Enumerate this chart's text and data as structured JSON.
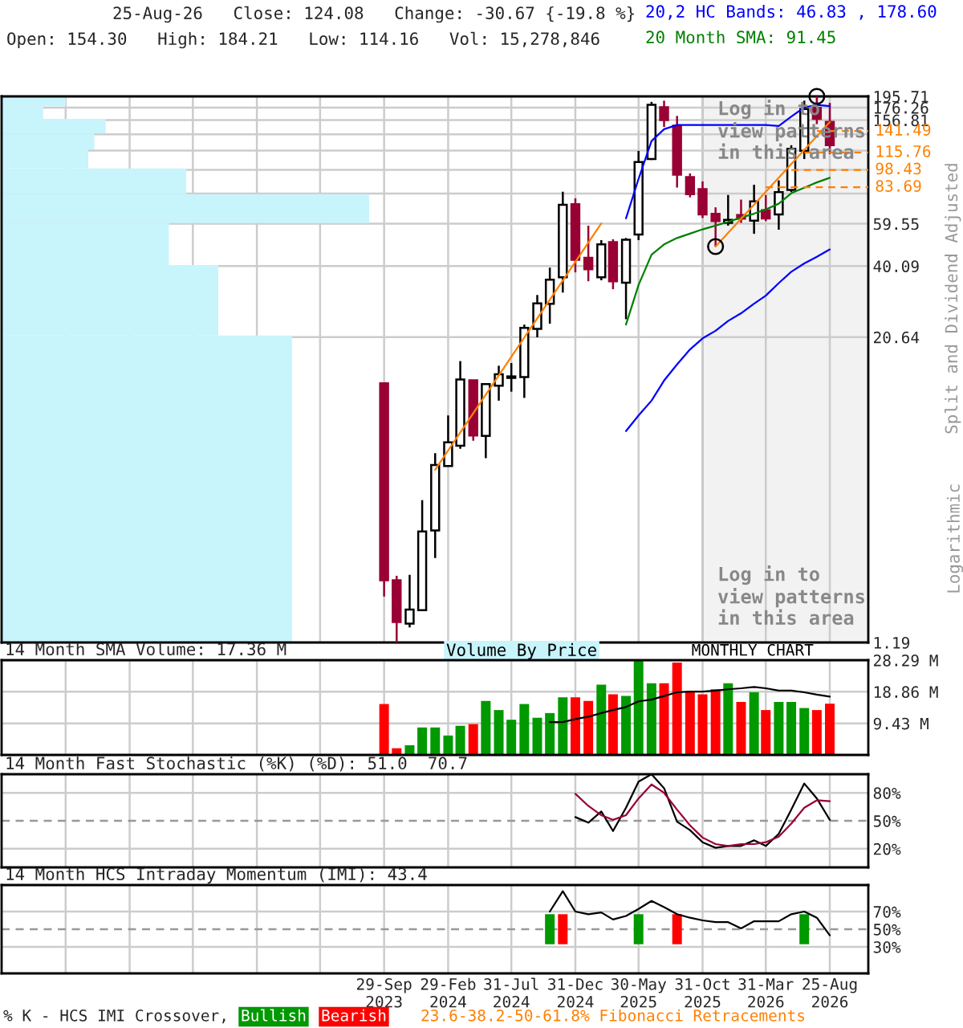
{
  "chart_data": [
    {
      "type": "candlestick",
      "title": "25-Aug-26   Close: 124.08   Change: -30.67 {-19.8 %}",
      "subtitle": "Open: 154.30   High: 184.21   Low: 114.16   Vol: 15,278,846",
      "x": [
        "2023-09",
        "2023-10",
        "2023-11",
        "2023-12",
        "2024-01",
        "2024-02",
        "2024-03",
        "2024-04",
        "2024-05",
        "2024-06",
        "2024-07",
        "2024-08",
        "2024-09",
        "2024-10",
        "2024-11",
        "2024-12",
        "2025-01",
        "2025-02",
        "2025-03",
        "2025-04",
        "2025-05",
        "2025-06",
        "2025-07",
        "2025-08",
        "2025-09",
        "2025-10",
        "2025-11",
        "2025-12",
        "2026-01",
        "2026-02",
        "2026-03",
        "2026-04",
        "2026-05",
        "2026-06",
        "2026-07",
        "2026-08"
      ],
      "ohlc": [
        [
          13.4,
          13.4,
          1.83,
          2.13
        ],
        [
          2.13,
          2.22,
          1.19,
          1.44
        ],
        [
          1.42,
          2.24,
          1.37,
          1.62
        ],
        [
          1.61,
          4.5,
          1.6,
          3.36
        ],
        [
          3.39,
          6.98,
          2.62,
          6.25
        ],
        [
          6.19,
          9.93,
          6.19,
          7.72
        ],
        [
          7.48,
          16.5,
          7.27,
          13.9
        ],
        [
          13.8,
          13.8,
          7.84,
          8.24
        ],
        [
          8.2,
          13.4,
          6.66,
          13.3
        ],
        [
          13.1,
          15.8,
          11.4,
          14.6
        ],
        [
          14.1,
          16.2,
          12.4,
          14.3
        ],
        [
          14.2,
          23.2,
          11.7,
          22.5
        ],
        [
          22.3,
          30.6,
          20.6,
          28.3
        ],
        [
          28.2,
          39.5,
          23.4,
          35.3
        ],
        [
          36.1,
          80.3,
          31.3,
          71.0
        ],
        [
          71.4,
          75.5,
          37.8,
          42.5
        ],
        [
          43.3,
          58.5,
          34.8,
          38.9
        ],
        [
          36.1,
          51.1,
          35.1,
          49.1
        ],
        [
          50.1,
          51.5,
          32.3,
          34.8
        ],
        [
          34.3,
          52.1,
          24.4,
          51.3
        ],
        [
          53.8,
          117.6,
          51.1,
          106
        ],
        [
          109,
          186,
          108,
          181
        ],
        [
          177,
          188,
          147,
          156.7
        ],
        [
          148.7,
          163,
          83.5,
          94.2
        ],
        [
          92,
          95.3,
          76.2,
          78.5
        ],
        [
          82.2,
          88.4,
          62.8,
          65.0
        ],
        [
          65.3,
          69.4,
          48.1,
          61.0
        ],
        [
          60.0,
          77.9,
          58.5,
          61.7
        ],
        [
          64.6,
          74.6,
          60,
          62.4
        ],
        [
          61.3,
          85.7,
          54.2,
          73.3
        ],
        [
          67.5,
          77.9,
          61,
          62.6
        ],
        [
          64.9,
          89.3,
          56.3,
          80.0
        ],
        [
          81.7,
          124,
          80,
          120
        ],
        [
          117.7,
          188,
          109,
          174
        ],
        [
          176,
          195.71,
          151,
          158.5
        ],
        [
          154.3,
          184.21,
          114.16,
          124.08
        ]
      ],
      "series": [
        {
          "type": "line",
          "name": "20,2 HC Bands: 46.83 , 178.60",
          "color": "#0000ff",
          "x": [
            "2025-04",
            "2025-05",
            "2025-06",
            "2025-07",
            "2025-08",
            "2025-09",
            "2025-10",
            "2025-11",
            "2025-12",
            "2026-01",
            "2026-02",
            "2026-03",
            "2026-04",
            "2026-05",
            "2026-06",
            "2026-07",
            "2026-08"
          ],
          "values": [
            62.6,
            90.5,
            128.9,
            144,
            149.8,
            149.8,
            149.8,
            149.8,
            149.8,
            149.8,
            149.8,
            149.8,
            148.3,
            162,
            176.5,
            180.7,
            178.6
          ]
        },
        {
          "type": "line",
          "color": "#0000ff",
          "x": [
            "2025-04",
            "2025-05",
            "2025-06",
            "2025-07",
            "2025-08",
            "2025-09",
            "2025-10",
            "2025-11",
            "2025-12",
            "2026-01",
            "2026-02",
            "2026-03",
            "2026-04",
            "2026-05",
            "2026-06",
            "2026-07",
            "2026-08"
          ],
          "values": [
            8.58,
            9.93,
            11.4,
            13.76,
            16.0,
            18.4,
            20.4,
            21.9,
            24.0,
            25.8,
            28.2,
            30.4,
            34.2,
            38.0,
            41.1,
            43.7,
            46.83
          ]
        },
        {
          "type": "line",
          "name": "20 Month SMA: 91.45",
          "color": "#008000",
          "x": [
            "2025-04",
            "2025-05",
            "2025-06",
            "2025-07",
            "2025-08",
            "2025-09",
            "2025-10",
            "2025-11",
            "2025-12",
            "2026-01",
            "2026-02",
            "2026-03",
            "2026-04",
            "2026-05",
            "2026-06",
            "2026-07",
            "2026-08"
          ],
          "values": [
            23.2,
            33.6,
            44.6,
            49.1,
            52.1,
            54.3,
            56.5,
            58.5,
            60.6,
            63.1,
            65.4,
            68.1,
            71.8,
            79.2,
            83.3,
            87.6,
            91.45
          ]
        },
        {
          "type": "line",
          "color": "#ff8000",
          "x": [
            "2024-01",
            "2025-02"
          ],
          "values": [
            5.98,
            59.7
          ]
        },
        {
          "type": "line",
          "color": "#ff8000",
          "x": [
            "2025-11",
            "2026-08"
          ],
          "values": [
            48.1,
            154
          ]
        },
        {
          "type": "line",
          "color": "#ff8000",
          "line_style": "dashed",
          "x": [
            "2026-07",
            "2026-11"
          ],
          "values": [
            141.49,
            141.49
          ],
          "value_labels": [
            null,
            "141.49"
          ]
        },
        {
          "type": "line",
          "color": "#ff8000",
          "line_style": "dashed",
          "x": [
            "2026-06",
            "2026-11"
          ],
          "values": [
            115.76,
            115.76
          ],
          "value_labels": [
            null,
            "115.76"
          ]
        },
        {
          "type": "line",
          "color": "#ff8000",
          "line_style": "dashed",
          "x": [
            "2026-05",
            "2026-11"
          ],
          "values": [
            98.43,
            98.43
          ],
          "value_labels": [
            null,
            "98.43"
          ]
        },
        {
          "type": "line",
          "color": "#ff8000",
          "line_style": "dashed",
          "x": [
            "2026-03",
            "2026-11"
          ],
          "values": [
            83.69,
            83.69
          ],
          "value_labels": [
            null,
            "83.69"
          ]
        },
        {
          "type": "scatter",
          "color": "#000000",
          "marker": "circle",
          "x": [
            "2026-07",
            "2025-11"
          ],
          "values": [
            195.71,
            48.1
          ]
        }
      ],
      "xlim": [
        "2021-03",
        "2026-11"
      ],
      "xticks": [
        {
          "value": "2021-08",
          "label": null
        },
        {
          "value": "2022-01",
          "label": null
        },
        {
          "value": "2022-06",
          "label": null
        },
        {
          "value": "2022-11",
          "label": null
        },
        {
          "value": "2023-04",
          "label": null
        },
        {
          "value": "2023-09",
          "label": null
        },
        {
          "value": "2024-02",
          "label": null
        },
        {
          "value": "2024-07",
          "label": null
        },
        {
          "value": "2024-12",
          "label": null
        },
        {
          "value": "2025-05",
          "label": null
        },
        {
          "value": "2025-10",
          "label": null
        },
        {
          "value": "2026-03",
          "label": null
        },
        {
          "value": "2026-08",
          "label": null
        }
      ],
      "log": true,
      "ylim": [
        1.19,
        195.71
      ],
      "yticks": [
        1.19,
        20.64,
        40.09,
        59.55,
        {
          "value": 79.0,
          "label": null
        },
        {
          "value": 98.45,
          "label": null
        },
        {
          "value": 117.9,
          "label": null
        },
        {
          "value": 137.36,
          "label": null
        },
        156.81,
        176.26,
        195.71
      ],
      "ylabel": "Split and Dividend Adjusted",
      "bands": [
        {
          "axis": "x",
          "from": "2025-10",
          "to": "2026-11",
          "color": "#f2f2f2"
        }
      ],
      "annotations": [
        "Log in to\nview patterns\nin this area",
        "Log in to\nview patterns\nin this area",
        "MONTHLY CHART",
        "Logarithmic",
        "Volume By Price"
      ],
      "grid": true,
      "tick_labels": "y",
      "legend": "top right"
    },
    {
      "type": "bar",
      "title": "14 Month SMA Volume: 17.36 M",
      "x": [
        "2023-09",
        "2023-10",
        "2023-11",
        "2023-12",
        "2024-01",
        "2024-02",
        "2024-03",
        "2024-04",
        "2024-05",
        "2024-06",
        "2024-07",
        "2024-08",
        "2024-09",
        "2024-10",
        "2024-11",
        "2024-12",
        "2025-01",
        "2025-02",
        "2025-03",
        "2025-04",
        "2025-05",
        "2025-06",
        "2025-07",
        "2025-08",
        "2025-09",
        "2025-10",
        "2025-11",
        "2025-12",
        "2026-01",
        "2026-02",
        "2026-03",
        "2026-04",
        "2026-05",
        "2026-06",
        "2026-07",
        "2026-08"
      ],
      "series": [
        {
          "type": "bar",
          "values": [
            15.2,
            2.0,
            2.9,
            8.2,
            8.2,
            5.8,
            8.7,
            9.2,
            16.1,
            13.4,
            10.5,
            15.2,
            11.1,
            12.5,
            17.2,
            17.2,
            16.1,
            21.0,
            18.1,
            17.6,
            28.2,
            21.4,
            21.4,
            27.6,
            18.7,
            18.1,
            19.6,
            21.4,
            15.8,
            18.7,
            13.4,
            15.8,
            15.8,
            14.0,
            13.4,
            15.3
          ],
          "colors": [
            "#ff0000",
            "#ff0000",
            "#009900",
            "#009900",
            "#009900",
            "#009900",
            "#009900",
            "#ff0000",
            "#009900",
            "#009900",
            "#009900",
            "#009900",
            "#009900",
            "#009900",
            "#009900",
            "#ff0000",
            "#ff0000",
            "#009900",
            "#ff0000",
            "#009900",
            "#009900",
            "#009900",
            "#ff0000",
            "#ff0000",
            "#ff0000",
            "#ff0000",
            "#ff0000",
            "#009900",
            "#ff0000",
            "#009900",
            "#ff0000",
            "#009900",
            "#009900",
            "#009900",
            "#ff0000",
            "#ff0000"
          ]
        },
        {
          "type": "line",
          "color": "#000000",
          "x": [
            "2024-10",
            "2024-11",
            "2024-12",
            "2025-01",
            "2025-02",
            "2025-03",
            "2025-04",
            "2025-05",
            "2025-06",
            "2025-07",
            "2025-08",
            "2025-09",
            "2025-10",
            "2025-11",
            "2025-12",
            "2026-01",
            "2026-02",
            "2026-03",
            "2026-04",
            "2026-05",
            "2026-06",
            "2026-07",
            "2026-08"
          ],
          "values": [
            9.8,
            9.8,
            10.7,
            11.4,
            12.5,
            13.4,
            14.3,
            16.0,
            16.5,
            17.6,
            18.7,
            18.9,
            18.9,
            19.2,
            19.6,
            19.9,
            20.3,
            19.9,
            19.2,
            19.2,
            18.7,
            18.0,
            17.4
          ]
        }
      ],
      "xlim": [
        "2021-03",
        "2026-11"
      ],
      "xticks": [
        {
          "value": "2021-08",
          "label": null
        },
        {
          "value": "2022-01",
          "label": null
        },
        {
          "value": "2022-06",
          "label": null
        },
        {
          "value": "2022-11",
          "label": null
        },
        {
          "value": "2023-04",
          "label": null
        },
        {
          "value": "2023-09",
          "label": null
        },
        {
          "value": "2024-02",
          "label": null
        },
        {
          "value": "2024-07",
          "label": null
        },
        {
          "value": "2024-12",
          "label": null
        },
        {
          "value": "2025-05",
          "label": null
        },
        {
          "value": "2025-10",
          "label": null
        },
        {
          "value": "2026-03",
          "label": null
        },
        {
          "value": "2026-08",
          "label": null
        }
      ],
      "ylim": [
        0,
        28.29
      ],
      "yticks": [
        {
          "value": 9.43,
          "label": "9.43 M"
        },
        {
          "value": 18.86,
          "label": "18.86 M"
        },
        {
          "value": 28.29,
          "label": "28.29 M"
        }
      ],
      "grid": true,
      "tick_labels": "y"
    },
    {
      "type": "line",
      "title": "14 Month Fast Stochastic (%K) (%D): 51.0  70.7",
      "series": [
        {
          "type": "line",
          "color": "#000000",
          "x": [
            "2024-12",
            "2025-01",
            "2025-02",
            "2025-03",
            "2025-04",
            "2025-05",
            "2025-06",
            "2025-07",
            "2025-08",
            "2025-09",
            "2025-10",
            "2025-11",
            "2025-12",
            "2026-01",
            "2026-02",
            "2026-03",
            "2026-04",
            "2026-05",
            "2026-06",
            "2026-07",
            "2026-08"
          ],
          "values": [
            54,
            48,
            60,
            39,
            64,
            92,
            100,
            85,
            49,
            40,
            27,
            21,
            23,
            23,
            29,
            23,
            36,
            62,
            90,
            74,
            51
          ]
        },
        {
          "type": "line",
          "color": "#990033",
          "x": [
            "2024-12",
            "2025-01",
            "2025-02",
            "2025-03",
            "2025-04",
            "2025-05",
            "2025-06",
            "2025-07",
            "2025-08",
            "2025-09",
            "2025-10",
            "2025-11",
            "2025-12",
            "2026-01",
            "2026-02",
            "2026-03",
            "2026-04",
            "2026-05",
            "2026-06",
            "2026-07",
            "2026-08"
          ],
          "values": [
            79,
            66,
            56,
            51,
            56,
            74,
            89,
            80,
            62,
            45,
            32,
            25,
            23,
            25,
            25,
            27,
            33,
            47,
            64,
            72,
            71
          ]
        }
      ],
      "xlim": [
        "2021-03",
        "2026-11"
      ],
      "xticks": [
        {
          "value": "2021-08",
          "label": null
        },
        {
          "value": "2022-01",
          "label": null
        },
        {
          "value": "2022-06",
          "label": null
        },
        {
          "value": "2022-11",
          "label": null
        },
        {
          "value": "2023-04",
          "label": null
        },
        {
          "value": "2023-09",
          "label": null
        },
        {
          "value": "2024-02",
          "label": null
        },
        {
          "value": "2024-07",
          "label": null
        },
        {
          "value": "2024-12",
          "label": null
        },
        {
          "value": "2025-05",
          "label": null
        },
        {
          "value": "2025-10",
          "label": null
        },
        {
          "value": "2026-03",
          "label": null
        },
        {
          "value": "2026-08",
          "label": null
        }
      ],
      "ylim": [
        0,
        100
      ],
      "yticks": [
        {
          "value": 80,
          "label": "80%"
        },
        {
          "value": 50,
          "label": "50%"
        },
        {
          "value": 20,
          "label": "20%"
        }
      ],
      "ref_lines": [
        {
          "axis": "y",
          "value": 50,
          "color": "#999999",
          "line_style": "dashed"
        }
      ],
      "grid": true,
      "tick_labels": "y"
    },
    {
      "type": "line",
      "title": "14 Month HCS Intraday Momentum (IMI): 43.4",
      "series": [
        {
          "type": "line",
          "color": "#000000",
          "x": [
            "2024-10",
            "2024-11",
            "2024-12",
            "2025-01",
            "2025-02",
            "2025-03",
            "2025-04",
            "2025-05",
            "2025-06",
            "2025-07",
            "2025-08",
            "2025-09",
            "2025-10",
            "2025-11",
            "2025-12",
            "2026-01",
            "2026-02",
            "2026-03",
            "2026-04",
            "2026-05",
            "2026-06",
            "2026-07",
            "2026-08"
          ],
          "values": [
            70,
            93,
            70,
            67,
            69,
            61,
            65,
            73,
            82,
            75,
            67,
            63,
            60,
            58,
            58,
            51,
            59,
            59,
            59,
            67,
            70,
            63,
            43
          ]
        },
        {
          "type": "bar",
          "name": "Bullish",
          "color": "#009900",
          "x": [
            "2024-10",
            "2025-05",
            "2026-06"
          ],
          "base": [
            33,
            33,
            33
          ],
          "values": [
            34,
            34,
            34
          ]
        },
        {
          "type": "bar",
          "name": "Bearish",
          "color": "#ff0000",
          "x": [
            "2024-11",
            "2025-08"
          ],
          "base": [
            33,
            33
          ],
          "values": [
            34,
            34
          ]
        }
      ],
      "xlim": [
        "2021-03",
        "2026-11"
      ],
      "xticks": [
        {
          "value": "2021-08",
          "label": null
        },
        {
          "value": "2022-01",
          "label": null
        },
        {
          "value": "2022-06",
          "label": null
        },
        {
          "value": "2022-11",
          "label": null
        },
        {
          "value": "2023-04",
          "label": null
        },
        {
          "value": "2023-09",
          "label": "29-Sep\n2023"
        },
        {
          "value": "2024-02",
          "label": "29-Feb\n2024"
        },
        {
          "value": "2024-07",
          "label": "31-Jul\n2024"
        },
        {
          "value": "2024-12",
          "label": "31-Dec\n2024"
        },
        {
          "value": "2025-05",
          "label": "30-May\n2025"
        },
        {
          "value": "2025-10",
          "label": "31-Oct\n2025"
        },
        {
          "value": "2026-03",
          "label": "31-Mar\n2026"
        },
        {
          "value": "2026-08",
          "label": "25-Aug\n2026"
        }
      ],
      "ylim": [
        0,
        100
      ],
      "yticks": [
        {
          "value": 70,
          "label": "70%"
        },
        {
          "value": 50,
          "label": "50%"
        },
        {
          "value": 30,
          "label": "30%"
        }
      ],
      "ref_lines": [
        {
          "axis": "y",
          "value": 50,
          "color": "#999999",
          "line_style": "dashed"
        }
      ],
      "legend": "bottom",
      "legend_title": "% K - HCS IMI Crossover,",
      "annotations": [
        "23.6-38.2-50-61.8% Fibonacci Retracements"
      ],
      "grid": true
    }
  ]
}
